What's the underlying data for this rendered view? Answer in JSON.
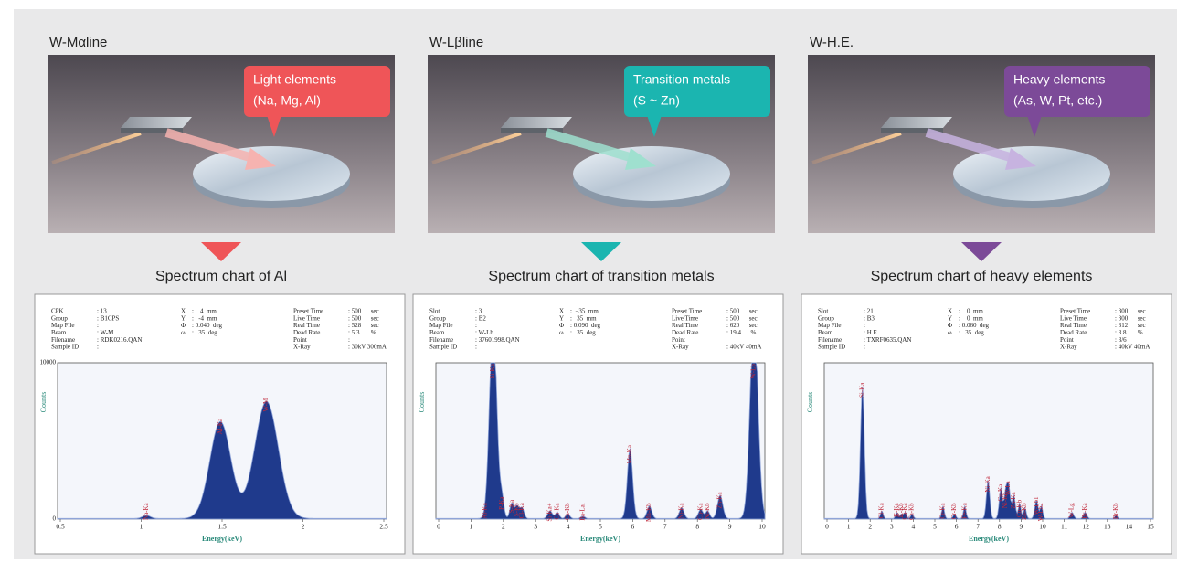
{
  "panels": [
    {
      "line_label": "W-Mαline",
      "color": "#ef5558",
      "beam_color": "#f6b3b0",
      "callout": [
        "Light elements",
        "(Na, Mg, Al)"
      ],
      "chart_title": "Spectrum chart of Al",
      "info": [
        [
          [
            "CPK",
            ": 13"
          ],
          [
            "Group",
            ": B1CPS"
          ],
          [
            "Map File",
            ":"
          ],
          [
            "Beam",
            ": W-M"
          ],
          [
            "Filename",
            ": RDK0216.QAN"
          ],
          [
            "Sample ID",
            ":"
          ]
        ],
        [
          [
            "X",
            ":    4  mm"
          ],
          [
            "Y",
            ":   -4  mm"
          ],
          [
            "Φ",
            ": 0.040  deg"
          ],
          [
            "ω",
            ":   35  deg"
          ]
        ],
        [
          [
            "Preset Time",
            ": 500      sec"
          ],
          [
            "Live Time",
            ": 500      sec"
          ],
          [
            "Real Time",
            ": 528      sec"
          ],
          [
            "Dead Rate",
            ": 5.3       %"
          ],
          [
            "Point",
            ":"
          ],
          [
            "X-Ray",
            ": 30kV 300mA"
          ]
        ]
      ],
      "yticks": [
        "10000",
        "0"
      ],
      "y_label": "Counts",
      "x_label": "Energy(keV)",
      "xticks": [
        "0.5",
        "1",
        "1.5",
        "2",
        "2.5"
      ],
      "peaks": [
        "Na-Ka",
        "Al-Ka",
        "W-M"
      ]
    },
    {
      "line_label": "W-Lβline",
      "color": "#1bb5b0",
      "beam_color": "#9fe0cf",
      "callout": [
        "Transition metals",
        "(S ~ Zn)"
      ],
      "chart_title": "Spectrum chart of transition metals",
      "info": [
        [
          [
            "Slot",
            ": 3"
          ],
          [
            "Group",
            ": B2"
          ],
          [
            "Map File",
            ":"
          ],
          [
            "Beam",
            ": W-Lb"
          ],
          [
            "Filename",
            ": 37601998.QAN"
          ],
          [
            "Sample ID",
            ":"
          ]
        ],
        [
          [
            "X",
            ":  −35  mm"
          ],
          [
            "Y",
            ":   35  mm"
          ],
          [
            "Φ",
            ": 0.090  deg"
          ],
          [
            "ω",
            ":   35  deg"
          ]
        ],
        [
          [
            "Preset Time",
            ": 500      sec"
          ],
          [
            "Live Time",
            ": 500      sec"
          ],
          [
            "Real Time",
            ": 620      sec"
          ],
          [
            "Dead Rate",
            ": 19.4      %"
          ],
          [
            "Point",
            ""
          ],
          [
            "X-Ray",
            ": 40kV 40mA"
          ]
        ]
      ],
      "yticks": [],
      "y_label": "Counts",
      "x_label": "Energy(keV)",
      "xticks": [
        "0",
        "1",
        "2",
        "3",
        "4",
        "5",
        "6",
        "7",
        "8",
        "9",
        "10"
      ],
      "peaks": [
        "Si-Ka",
        "Al-Ka",
        "P-Ka",
        "S-Ka",
        "S-Kb",
        "Cl-Ka",
        "Si-Ka+",
        "Ca-Ka",
        "Ca-Kb",
        "Ba-Lal",
        "Mn-Ka",
        "Mn-Kb",
        "Ni-Ka",
        "Cu-Ka",
        "Ni-Kb",
        "Zn-Ka",
        "W-Lb"
      ]
    },
    {
      "line_label": "W-H.E.",
      "color": "#7c4a98",
      "beam_color": "#c7b3e0",
      "callout": [
        "Heavy elements",
        "(As, W, Pt, etc.)"
      ],
      "chart_title": "Spectrum chart of heavy elements",
      "info": [
        [
          [
            "Slot",
            ": 21"
          ],
          [
            "Group",
            ": B3"
          ],
          [
            "Map File",
            ":"
          ],
          [
            "Beam",
            ": H.E"
          ],
          [
            "Filename",
            ": TXRF0635.QAN"
          ],
          [
            "Sample ID",
            ":"
          ]
        ],
        [
          [
            "X",
            ":    0  mm"
          ],
          [
            "Y",
            ":    0  mm"
          ],
          [
            "Φ",
            ": 0.060  deg"
          ],
          [
            "ω",
            ":   35  deg"
          ]
        ],
        [
          [
            "Preset Time",
            ": 300      sec"
          ],
          [
            "Live Time",
            ": 300      sec"
          ],
          [
            "Real Time",
            ": 312      sec"
          ],
          [
            "Dead Rate",
            ": 3.8       %"
          ],
          [
            "Point",
            ": 3/6"
          ],
          [
            "X-Ray",
            ": 40kV 40mA"
          ]
        ]
      ],
      "yticks": [],
      "y_label": "Counts",
      "x_label": "Energy(keV)",
      "xticks": [
        "0",
        "1",
        "2",
        "3",
        "4",
        "5",
        "6",
        "7",
        "8",
        "9",
        "10",
        "11",
        "12",
        "13",
        "14",
        "15"
      ],
      "peaks": [
        "Si-Ka",
        "Cl-Ka",
        "K-Ka",
        "K-Kb",
        "Ca-Ka",
        "Ca-Kb",
        "Cr-Ka",
        "Cr-Kb",
        "Fe-Ka",
        "Ni-Ka",
        "Cu-Ka",
        "Ni-Kb",
        "W-La",
        "Zn-Ka",
        "Cu-Kb",
        "Zn-Kb",
        "W-Lb1",
        "W-Lb2",
        "W-Lg",
        "Br-Ka",
        "Br-Kb"
      ]
    }
  ]
}
